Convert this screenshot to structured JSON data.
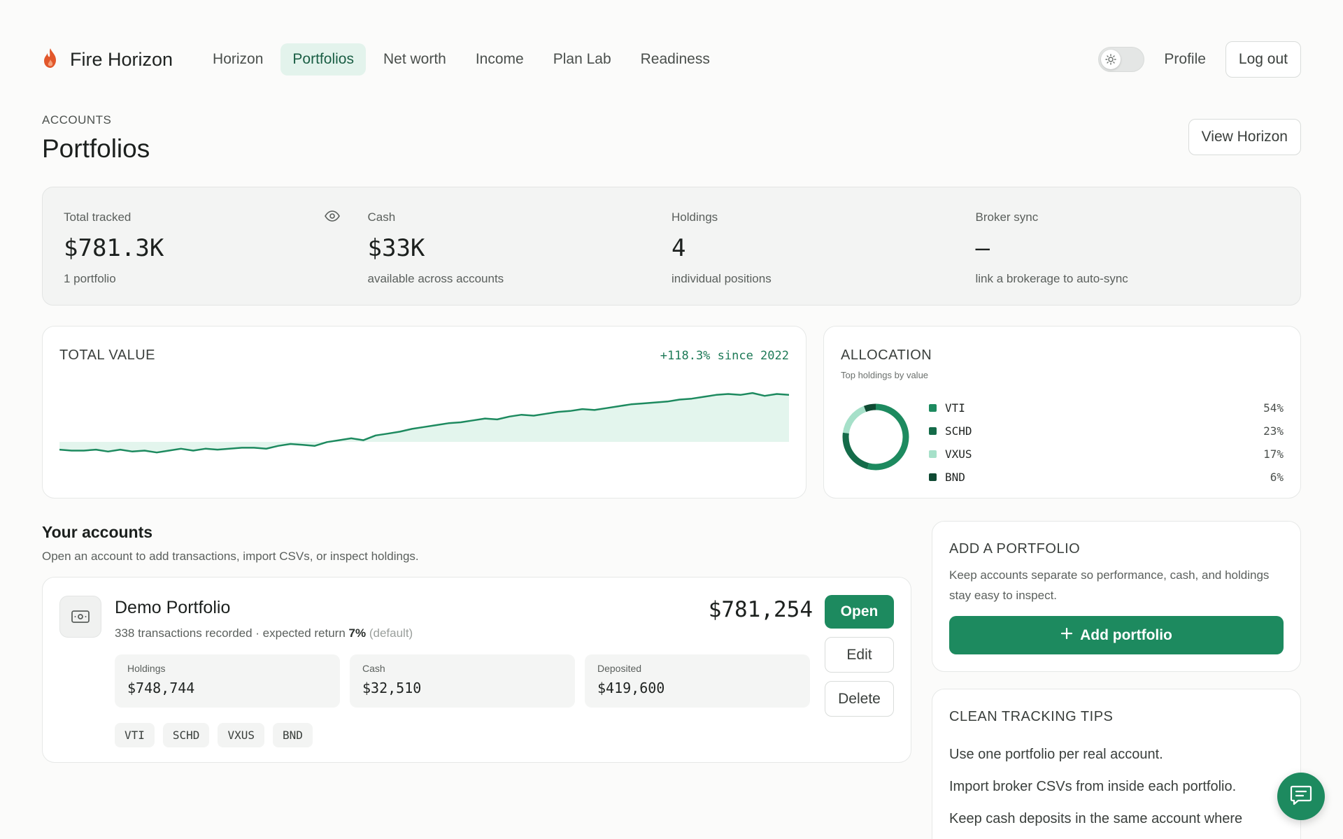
{
  "app": {
    "name": "Fire Horizon"
  },
  "nav": {
    "items": [
      {
        "label": "Horizon",
        "active": false
      },
      {
        "label": "Portfolios",
        "active": true
      },
      {
        "label": "Net worth",
        "active": false
      },
      {
        "label": "Income",
        "active": false
      },
      {
        "label": "Plan Lab",
        "active": false
      },
      {
        "label": "Readiness",
        "active": false
      }
    ],
    "theme_toggle": {
      "state": "light",
      "icon": "sun-icon"
    },
    "profile_label": "Profile",
    "logout_label": "Log out"
  },
  "header": {
    "eyebrow": "ACCOUNTS",
    "title": "Portfolios",
    "view_horizon_label": "View Horizon"
  },
  "stats": {
    "total": {
      "label": "Total tracked",
      "value": "$781.3K",
      "sub": "1 portfolio",
      "icon": "eye-icon"
    },
    "cash": {
      "label": "Cash",
      "value": "$33K",
      "sub": "available across accounts"
    },
    "holdings": {
      "label": "Holdings",
      "value": "4",
      "sub": "individual positions"
    },
    "broker": {
      "label": "Broker sync",
      "value": "–",
      "sub": "link a brokerage to auto-sync"
    }
  },
  "total_value": {
    "title": "TOTAL VALUE",
    "growth": "+118.3% since 2022"
  },
  "chart_data": {
    "type": "area",
    "title": "TOTAL VALUE",
    "x": [
      0,
      1,
      2,
      3,
      4,
      5,
      6,
      7,
      8,
      9,
      10,
      11,
      12,
      13,
      14,
      15,
      16,
      17,
      18,
      19,
      20,
      21,
      22,
      23,
      24,
      25,
      26,
      27,
      28,
      29,
      30,
      31,
      32,
      33,
      34,
      35,
      36,
      37,
      38,
      39,
      40,
      41,
      42,
      43,
      44,
      45,
      46,
      47,
      48,
      49,
      50,
      51,
      52,
      53,
      54,
      55,
      56,
      57,
      58,
      59,
      60
    ],
    "values": [
      14,
      13,
      13,
      14,
      12,
      14,
      12,
      13,
      11,
      13,
      15,
      13,
      15,
      14,
      15,
      16,
      16,
      15,
      18,
      20,
      19,
      18,
      22,
      24,
      26,
      24,
      29,
      31,
      33,
      36,
      38,
      40,
      42,
      43,
      45,
      47,
      46,
      49,
      51,
      50,
      52,
      54,
      55,
      57,
      56,
      58,
      60,
      62,
      63,
      64,
      65,
      67,
      68,
      70,
      72,
      73,
      72,
      74,
      71,
      73,
      72
    ],
    "ylim": [
      0,
      100
    ],
    "color": "#1d8a5f",
    "fill": "#e3f5ed"
  },
  "allocation": {
    "title": "ALLOCATION",
    "subtitle": "Top holdings by value",
    "items": [
      {
        "name": "VTI",
        "pct": "54%",
        "value": 54,
        "color": "#1d8a5f"
      },
      {
        "name": "SCHD",
        "pct": "23%",
        "value": 23,
        "color": "#146b49"
      },
      {
        "name": "VXUS",
        "pct": "17%",
        "value": 17,
        "color": "#a6e0c9"
      },
      {
        "name": "BND",
        "pct": "6%",
        "value": 6,
        "color": "#0f4a33"
      }
    ]
  },
  "accounts": {
    "title": "Your accounts",
    "subtitle": "Open an account to add transactions, import CSVs, or inspect holdings.",
    "list": [
      {
        "name": "Demo Portfolio",
        "meta_prefix": "338 transactions recorded · expected return ",
        "return_value": "7%",
        "return_note": "(default)",
        "total": "$781,254",
        "holdings_label": "Holdings",
        "holdings_value": "$748,744",
        "cash_label": "Cash",
        "cash_value": "$32,510",
        "deposited_label": "Deposited",
        "deposited_value": "$419,600",
        "tickers": [
          "VTI",
          "SCHD",
          "VXUS",
          "BND"
        ],
        "open_label": "Open",
        "edit_label": "Edit",
        "delete_label": "Delete"
      }
    ]
  },
  "add_portfolio": {
    "title": "ADD A PORTFOLIO",
    "description": "Keep accounts separate so performance, cash, and holdings stay easy to inspect.",
    "button_label": "Add portfolio"
  },
  "tips": {
    "title": "CLEAN TRACKING TIPS",
    "items": [
      "Use one portfolio per real account.",
      "Import broker CSVs from inside each portfolio.",
      "Keep cash deposits in the same account where"
    ]
  },
  "colors": {
    "accent": "#1d8a5f",
    "accent_light": "#e3f3ec",
    "brand_flame": "#e2572b"
  }
}
